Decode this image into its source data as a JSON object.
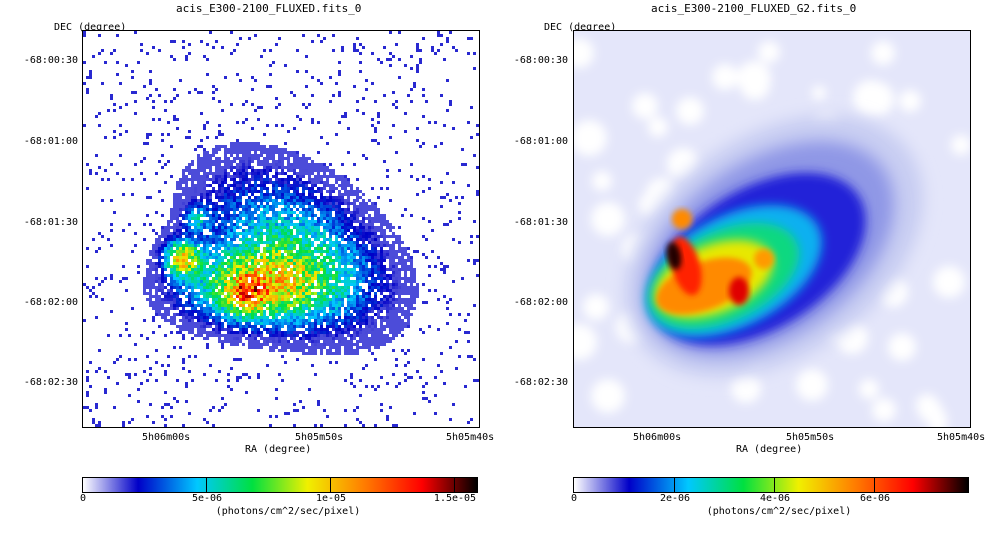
{
  "panels": [
    {
      "title": "acis_E300-2100_FLUXED.fits_0",
      "y_axis_title": "DEC (degree)",
      "x_axis_title": "RA (degree)",
      "y_ticks": [
        "-68:00:30",
        "-68:01:00",
        "-68:01:30",
        "-68:02:00",
        "-68:02:30"
      ],
      "x_ticks": [
        "5h06m00s",
        "5h05m50s",
        "5h05m40s"
      ],
      "colorbar_ticks": [
        "0",
        "5e-06",
        "1e-05",
        "1.5e-05"
      ],
      "colorbar_label": "(photons/cm^2/sec/pixel)",
      "smoothed": false
    },
    {
      "title": "acis_E300-2100_FLUXED_G2.fits_0",
      "y_axis_title": "DEC (degree)",
      "x_axis_title": "RA (degree)",
      "y_ticks": [
        "-68:00:30",
        "-68:01:00",
        "-68:01:30",
        "-68:02:00",
        "-68:02:30"
      ],
      "x_ticks": [
        "5h06m00s",
        "5h05m50s",
        "5h05m40s"
      ],
      "colorbar_ticks": [
        "0",
        "2e-06",
        "4e-06",
        "6e-06"
      ],
      "colorbar_label": "(photons/cm^2/sec/pixel)",
      "smoothed": true
    }
  ],
  "colormap": [
    "#ffffff",
    "#0000c8",
    "#00c8ff",
    "#00e040",
    "#f0f000",
    "#ff8000",
    "#ff0000",
    "#000000"
  ]
}
